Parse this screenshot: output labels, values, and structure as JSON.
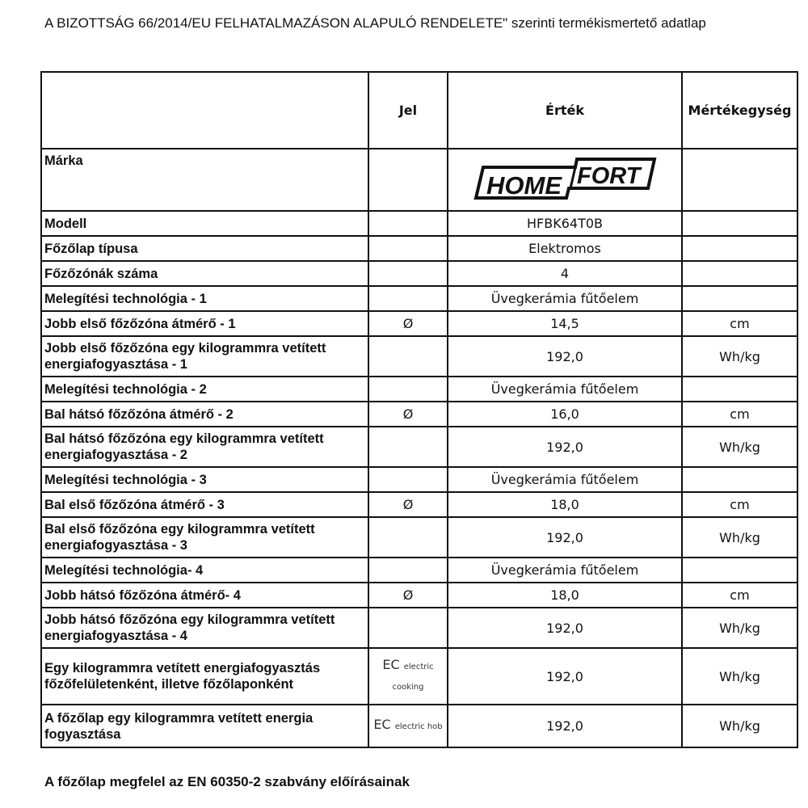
{
  "title": "A BIZOTTSÁG 66/2014/EU FELHATALMAZÁSON ALAPULÓ RENDELETE\" szerinti termékismertető adatlap",
  "headers": {
    "label": "",
    "symbol": "Jel",
    "value": "Érték",
    "unit": "Mértékegység"
  },
  "brand": {
    "label": "Márka",
    "logo_text": "HOMEFORT"
  },
  "rows": [
    {
      "label": "Modell",
      "symbol": "",
      "value": "HFBK64T0B",
      "unit": ""
    },
    {
      "label": "Főzőlap típusa",
      "symbol": "",
      "value": "Elektromos",
      "unit": ""
    },
    {
      "label": "Főzőzónák száma",
      "symbol": "",
      "value": "4",
      "unit": ""
    },
    {
      "label": "Melegítési technológia - 1",
      "symbol": "",
      "value": "Üvegkerámia fűtőelem",
      "unit": ""
    },
    {
      "label": "Jobb első főzőzóna átmérő - 1",
      "symbol": "Ø",
      "value": "14,5",
      "unit": "cm"
    },
    {
      "label": "Jobb első főzőzóna egy kilogrammra vetített energiafogyasztása - 1",
      "symbol": "",
      "value": "192,0",
      "unit": "Wh/kg"
    },
    {
      "label": "Melegítési technológia - 2",
      "symbol": "",
      "value": "Üvegkerámia fűtőelem",
      "unit": ""
    },
    {
      "label": "Bal hátsó főzőzóna átmérő - 2",
      "symbol": "Ø",
      "value": "16,0",
      "unit": "cm"
    },
    {
      "label": "Bal hátsó főzőzóna egy kilogrammra vetített energiafogyasztása - 2",
      "symbol": "",
      "value": "192,0",
      "unit": "Wh/kg"
    },
    {
      "label": "Melegítési technológia - 3",
      "symbol": "",
      "value": "Üvegkerámia fűtőelem",
      "unit": ""
    },
    {
      "label": "Bal első főzőzóna átmérő - 3",
      "symbol": "Ø",
      "value": "18,0",
      "unit": "cm"
    },
    {
      "label": "Bal első főzőzóna egy kilogrammra vetített energiafogyasztása - 3",
      "symbol": "",
      "value": "192,0",
      "unit": "Wh/kg"
    },
    {
      "label": "Melegítési technológia- 4",
      "symbol": "",
      "value": "Üvegkerámia fűtőelem",
      "unit": ""
    },
    {
      "label": "Jobb hátsó főzőzóna átmérő- 4",
      "symbol": "Ø",
      "value": "18,0",
      "unit": "cm"
    },
    {
      "label": "Jobb hátsó főzőzóna egy kilogrammra vetített energiafogyasztása - 4",
      "symbol": "",
      "value": "192,0",
      "unit": "Wh/kg"
    }
  ],
  "ec_rows": [
    {
      "label": "Egy kilogrammra vetített energiafogyasztás főzőfelületenként, illetve főzőlaponként",
      "symbol_main": "EC",
      "symbol_sub": "electric cooking",
      "value": "192,0",
      "unit": "Wh/kg"
    },
    {
      "label": "A főzőlap egy kilogrammra vetített energia fogyasztása",
      "symbol_main": "EC",
      "symbol_sub": "electric hob",
      "value": "192,0",
      "unit": "Wh/kg"
    }
  ],
  "footer": "A főzőlap megfelel az EN 60350-2 szabvány előírásainak"
}
